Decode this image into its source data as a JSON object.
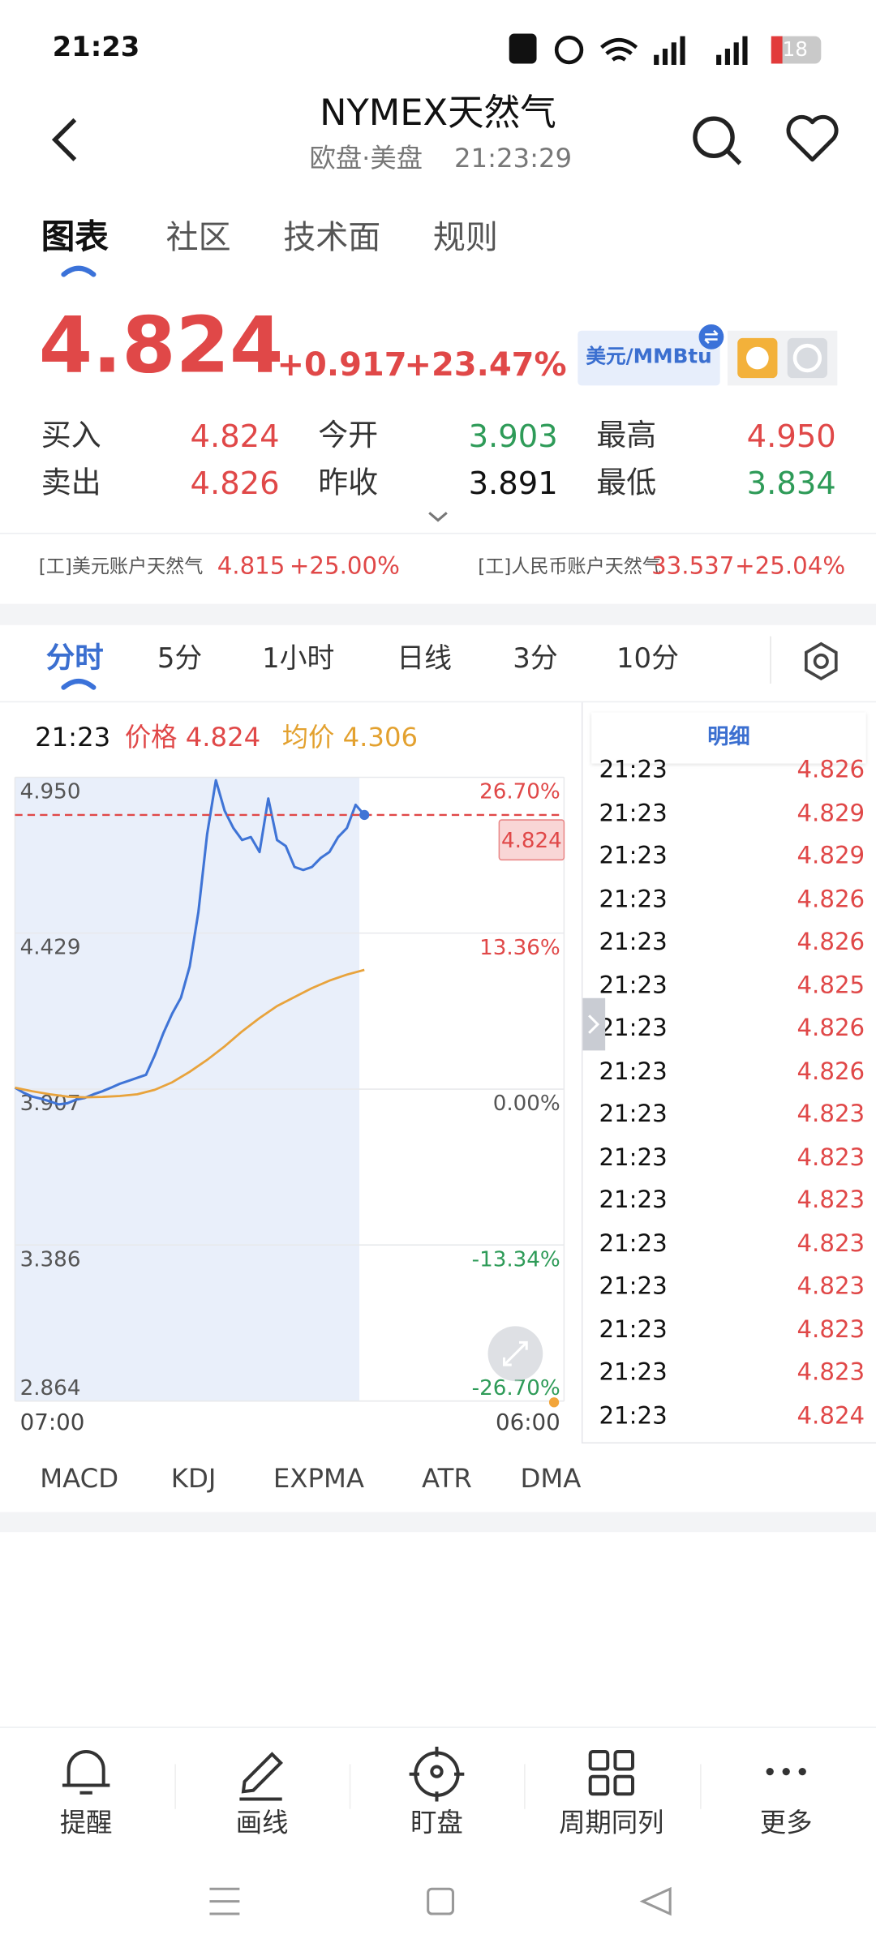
{
  "status_bar": {
    "time": "21:23",
    "battery": "18"
  },
  "header": {
    "title": "NYMEX天然气",
    "subtitle": "欧盘·美盘",
    "time": "21:23:29"
  },
  "tabs": [
    "图表",
    "社区",
    "技术面",
    "规则"
  ],
  "quote": {
    "price": "4.824",
    "change": "+0.917",
    "change_pct": "+23.47%",
    "unit": "美元/MMBtu"
  },
  "stats": [
    {
      "label": "买入",
      "value": "4.824"
    },
    {
      "label": "今开",
      "value": "3.903"
    },
    {
      "label": "最高",
      "value": "4.950"
    },
    {
      "label": "卖出",
      "value": "4.826"
    },
    {
      "label": "昨收",
      "value": "3.891"
    },
    {
      "label": "最低",
      "value": "3.834"
    }
  ],
  "related": [
    {
      "name": "[工]美元账户天然气",
      "price": "4.815",
      "pct": "+25.00%"
    },
    {
      "name": "[工]人民币账户天然气",
      "price": "33.537",
      "pct": "+25.04%"
    }
  ],
  "periods": [
    "分时",
    "5分",
    "1小时",
    "日线",
    "3分",
    "10分"
  ],
  "chart_info": {
    "time": "21:23",
    "price": "价格 4.824",
    "avg": "均价 4.306"
  },
  "chart": {
    "type": "line",
    "x_labels": [
      "07:00",
      "06:00"
    ],
    "ylim": [
      2.864,
      4.95
    ],
    "yticks": [
      {
        "value": 4.95,
        "label": "4.950"
      },
      {
        "value": 4.429,
        "label": "4.429"
      },
      {
        "value": 3.907,
        "label": "3.907"
      },
      {
        "value": 3.386,
        "label": "3.386"
      },
      {
        "value": 2.864,
        "label": "2.864"
      }
    ],
    "y2lim": [
      -26.7,
      26.7
    ],
    "y2ticks": [
      {
        "value": 26.7,
        "label": "26.70%"
      },
      {
        "value": 13.36,
        "label": "13.36%"
      },
      {
        "value": 0,
        "label": "0.00%"
      },
      {
        "value": -13.34,
        "label": "-13.34%"
      },
      {
        "value": -26.7,
        "label": "-26.70%"
      }
    ],
    "last_price": {
      "value": 4.824,
      "label": "4.824"
    },
    "series": [
      {
        "color": "#3f74d6",
        "values": [
          3.912,
          3.895,
          3.882,
          3.875,
          3.866,
          3.856,
          3.86,
          3.872,
          3.878,
          3.89,
          3.9,
          3.912,
          3.925,
          3.935,
          3.945,
          3.955,
          4.02,
          4.095,
          4.16,
          4.213,
          4.317,
          4.5,
          4.76,
          4.94,
          4.838,
          4.78,
          4.74,
          4.75,
          4.7,
          4.879,
          4.74,
          4.72,
          4.65,
          4.64,
          4.65,
          4.68,
          4.7,
          4.75,
          4.78,
          4.858,
          4.824
        ]
      },
      {
        "color": "#e8a33c",
        "values": [
          3.912,
          3.9,
          3.89,
          3.882,
          3.88,
          3.881,
          3.884,
          3.89,
          3.905,
          3.93,
          3.965,
          4.005,
          4.05,
          4.1,
          4.145,
          4.185,
          4.215,
          4.245,
          4.27,
          4.29,
          4.306
        ]
      }
    ]
  },
  "detail": {
    "title": "明细",
    "rows": [
      [
        "21:23",
        "4.826"
      ],
      [
        "21:23",
        "4.829"
      ],
      [
        "21:23",
        "4.829"
      ],
      [
        "21:23",
        "4.826"
      ],
      [
        "21:23",
        "4.826"
      ],
      [
        "21:23",
        "4.825"
      ],
      [
        "21:23",
        "4.826"
      ],
      [
        "21:23",
        "4.826"
      ],
      [
        "21:23",
        "4.823"
      ],
      [
        "21:23",
        "4.823"
      ],
      [
        "21:23",
        "4.823"
      ],
      [
        "21:23",
        "4.823"
      ],
      [
        "21:23",
        "4.823"
      ],
      [
        "21:23",
        "4.823"
      ],
      [
        "21:23",
        "4.823"
      ],
      [
        "21:23",
        "4.824"
      ]
    ]
  },
  "indicators": [
    "MACD",
    "KDJ",
    "EXPMA",
    "ATR",
    "DMA"
  ],
  "toolbar": [
    "提醒",
    "画线",
    "盯盘",
    "周期同列",
    "更多"
  ]
}
